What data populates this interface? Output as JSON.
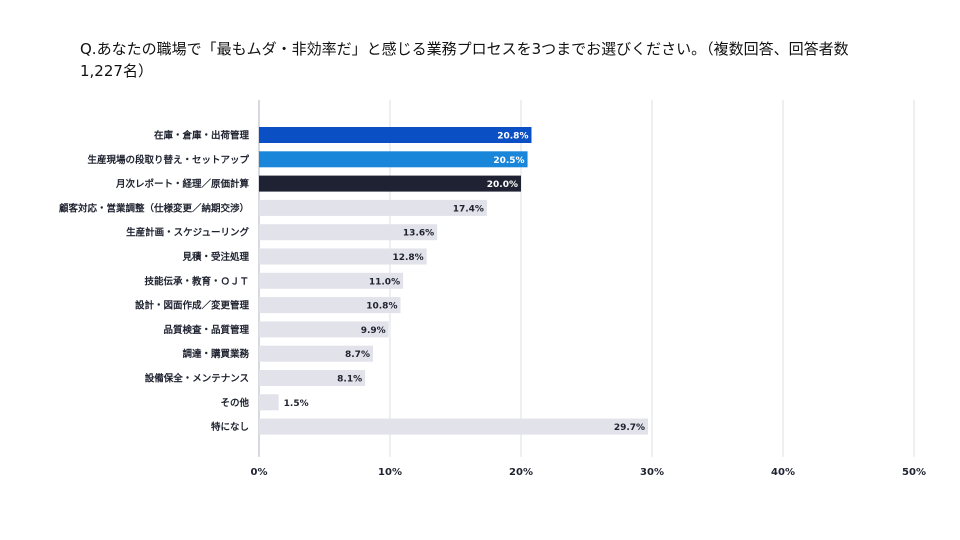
{
  "question": "Q.あなたの職場で「最もムダ・非効率だ」と感じる業務プロセスを3つまでお選びください。（複数回答、回答者数1,227名）",
  "chart_data": {
    "type": "bar",
    "orientation": "horizontal",
    "categories": [
      "在庫・倉庫・出荷管理",
      "生産現場の段取り替え・セットアップ",
      "月次レポート・経理／原価計算",
      "顧客対応・営業調整（仕様変更／納期交渉）",
      "生産計画・スケジューリング",
      "見積・受注処理",
      "技能伝承・教育・ＯＪＴ",
      "設計・図面作成／変更管理",
      "品質検査・品質管理",
      "調達・購買業務",
      "設備保全・メンテナンス",
      "その他",
      "特になし"
    ],
    "values": [
      20.8,
      20.5,
      20.0,
      17.4,
      13.6,
      12.8,
      11.0,
      10.8,
      9.9,
      8.7,
      8.1,
      1.5,
      29.7
    ],
    "value_labels": [
      "20.8",
      "20.5",
      "20.0",
      "17.4",
      "13.6",
      "12.8",
      "11.0",
      "10.8",
      "9.9",
      "8.7",
      "8.1",
      "1.5",
      "29.7"
    ],
    "unit": "%",
    "xlim": [
      0,
      50
    ],
    "xticks": [
      0,
      10,
      20,
      30,
      40,
      50
    ],
    "xtick_labels": [
      "0%",
      "10%",
      "20%",
      "30%",
      "40%",
      "50%"
    ],
    "colors": {
      "highlight": [
        "#0a4fc4",
        "#1a86d9",
        "#1e2232"
      ],
      "default": "#e2e2ea",
      "label_on_dark": "#ffffff",
      "label_on_light": "#1f2330",
      "grid": "#dcdfe6",
      "axis": "#aeb4c0"
    },
    "grid": true,
    "legend": "none"
  }
}
